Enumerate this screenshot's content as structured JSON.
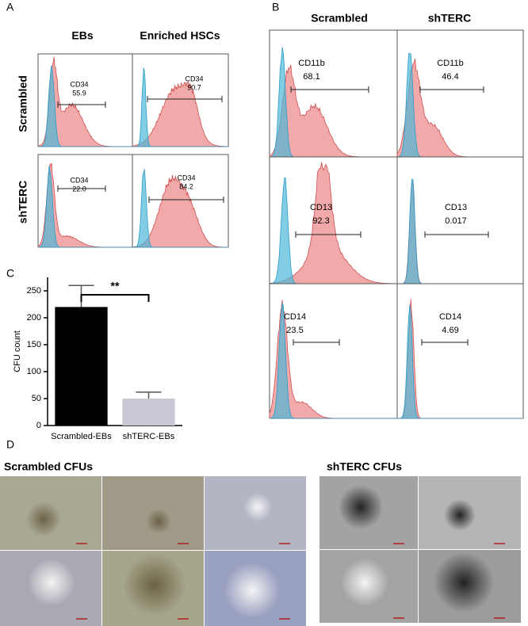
{
  "panel_labels": [
    "A",
    "B",
    "C",
    "D"
  ],
  "panel_a": {
    "columns": [
      "EBs",
      "Enriched HSCs"
    ],
    "rows": [
      "Scrambled",
      "shTERC"
    ],
    "gates": [
      [
        {
          "marker": "CD34",
          "value": "55.9"
        },
        {
          "marker": "CD34",
          "value": "90.7"
        }
      ],
      [
        {
          "marker": "CD34",
          "value": "22.0"
        },
        {
          "marker": "CD34",
          "value": "84.2"
        }
      ]
    ]
  },
  "panel_b": {
    "columns": [
      "Scrambled",
      "shTERC"
    ],
    "rows": [
      {
        "marker": "CD11b",
        "values": [
          "68.1",
          "46.4"
        ]
      },
      {
        "marker": "CD13",
        "values": [
          "92.3",
          "0.017"
        ]
      },
      {
        "marker": "CD14",
        "values": [
          "23.5",
          "4.69"
        ]
      }
    ]
  },
  "chart_data": {
    "type": "bar",
    "y_label": "CFU count",
    "categories": [
      "Scrambled-EBs",
      "shTERC-EBs"
    ],
    "values": [
      220,
      50
    ],
    "errors": [
      40,
      12
    ],
    "colors": [
      "#000000",
      "#c9c9d6"
    ],
    "ylim": [
      0,
      275
    ],
    "yticks": [
      0,
      50,
      100,
      150,
      200,
      250
    ],
    "significance": "**"
  },
  "panel_d": {
    "groups": [
      "Scrambled CFUs",
      "shTERC CFUs"
    ]
  }
}
